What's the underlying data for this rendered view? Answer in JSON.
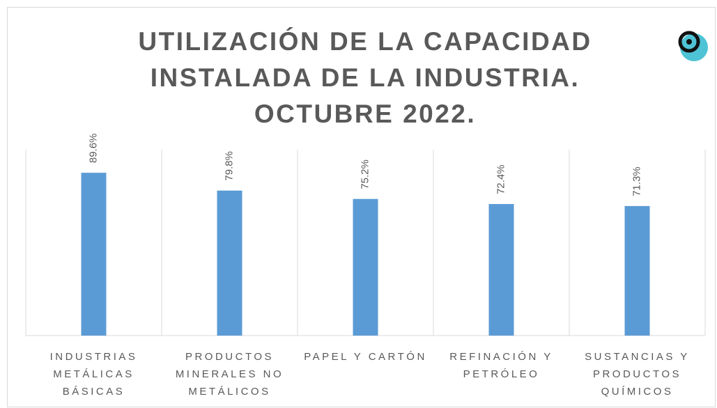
{
  "chart_data": {
    "type": "bar",
    "title": "UTILIZACIÓN DE LA CAPACIDAD INSTALADA DE LA INDUSTRIA. OCTUBRE 2022.",
    "categories": [
      "INDUSTRIAS METÁLICAS BÁSICAS",
      "PRODUCTOS MINERALES NO METÁLICOS",
      "PAPEL Y CARTÓN",
      "REFINACIÓN Y PETRÓLEO",
      "SUSTANCIAS Y PRODUCTOS QUÍMICOS"
    ],
    "values": [
      89.6,
      79.8,
      75.2,
      72.4,
      71.3
    ],
    "value_labels": [
      "89.6%",
      "79.8%",
      "75.2%",
      "72.4%",
      "71.3%"
    ],
    "color": "#5b9bd5",
    "ylim": [
      0,
      100
    ]
  }
}
